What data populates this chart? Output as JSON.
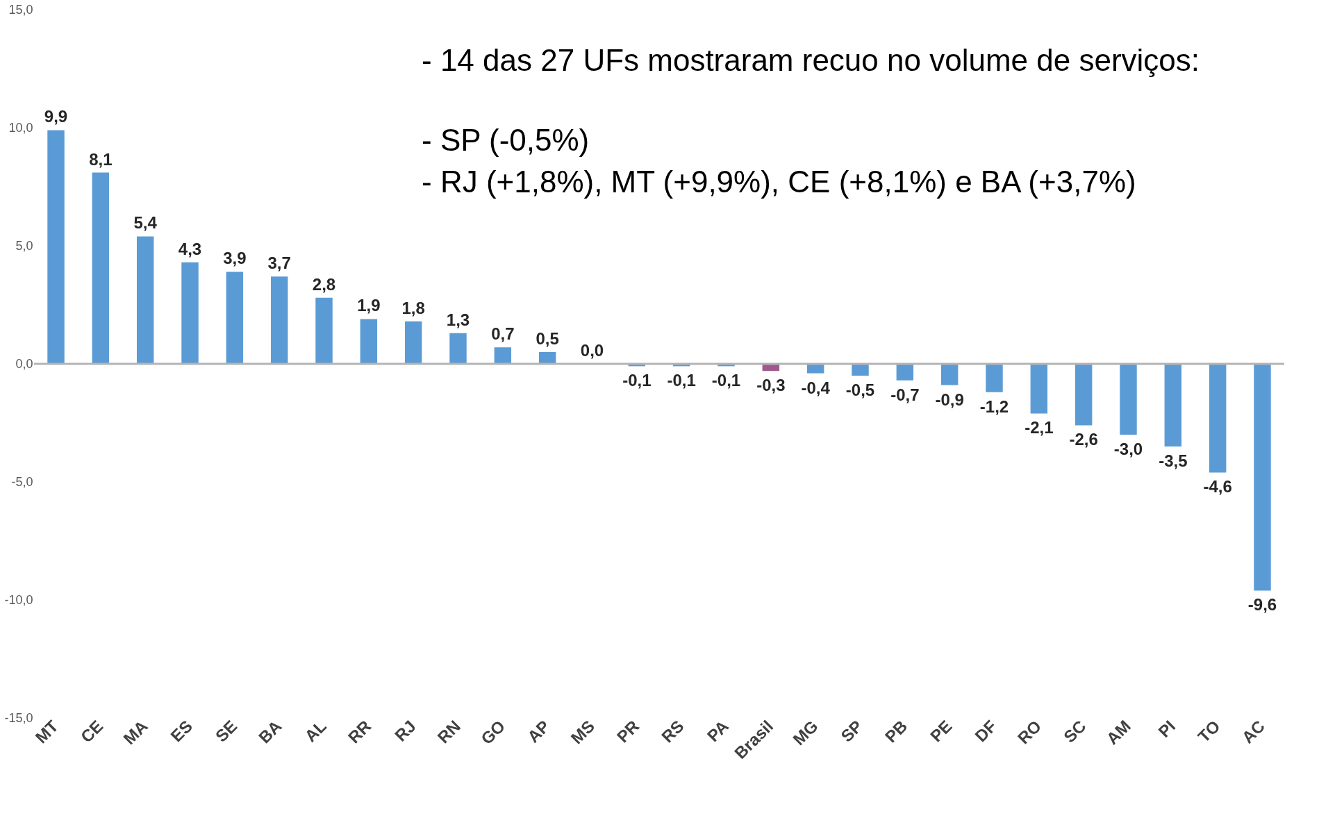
{
  "chart_data": {
    "type": "bar",
    "categories": [
      "MT",
      "CE",
      "MA",
      "ES",
      "SE",
      "BA",
      "AL",
      "RR",
      "RJ",
      "RN",
      "GO",
      "AP",
      "MS",
      "PR",
      "RS",
      "PA",
      "Brasil",
      "MG",
      "SP",
      "PB",
      "PE",
      "DF",
      "RO",
      "SC",
      "AM",
      "PI",
      "TO",
      "AC"
    ],
    "values": [
      9.9,
      8.1,
      5.4,
      4.3,
      3.9,
      3.7,
      2.8,
      1.9,
      1.8,
      1.3,
      0.7,
      0.5,
      0.0,
      -0.1,
      -0.1,
      -0.1,
      -0.3,
      -0.4,
      -0.5,
      -0.7,
      -0.9,
      -1.2,
      -2.1,
      -2.6,
      -3.0,
      -3.5,
      -4.6,
      -9.6
    ],
    "value_labels": [
      "9,9",
      "8,1",
      "5,4",
      "4,3",
      "3,9",
      "3,7",
      "2,8",
      "1,9",
      "1,8",
      "1,3",
      "0,7",
      "0,5",
      "0,0",
      "-0,1",
      "-0,1",
      "-0,1",
      "-0,3",
      "-0,4",
      "-0,5",
      "-0,7",
      "-0,9",
      "-1,2",
      "-2,1",
      "-2,6",
      "-3,0",
      "-3,5",
      "-4,6",
      "-9,6"
    ],
    "colors": [
      "#5b9bd5",
      "#5b9bd5",
      "#5b9bd5",
      "#5b9bd5",
      "#5b9bd5",
      "#5b9bd5",
      "#5b9bd5",
      "#5b9bd5",
      "#5b9bd5",
      "#5b9bd5",
      "#5b9bd5",
      "#5b9bd5",
      "#5b9bd5",
      "#5b9bd5",
      "#5b9bd5",
      "#5b9bd5",
      "#9e5a8a",
      "#5b9bd5",
      "#5b9bd5",
      "#5b9bd5",
      "#5b9bd5",
      "#5b9bd5",
      "#5b9bd5",
      "#5b9bd5",
      "#5b9bd5",
      "#5b9bd5",
      "#5b9bd5",
      "#5b9bd5"
    ],
    "ylim": [
      -15,
      15
    ],
    "yticks": [
      {
        "value": -15,
        "label": "-15,0"
      },
      {
        "value": -10,
        "label": "-10,0"
      },
      {
        "value": -5,
        "label": "-5,0"
      },
      {
        "value": 0,
        "label": "0,0"
      },
      {
        "value": 5,
        "label": "5,0"
      },
      {
        "value": 10,
        "label": "10,0"
      },
      {
        "value": 15,
        "label": "15,0"
      }
    ],
    "annotations": [
      "-   14 das 27 UFs mostraram recuo no volume de serviços:",
      "-   SP (-0,5%)",
      "-   RJ (+1,8%), MT (+9,9%), CE (+8,1%) e BA (+3,7%)"
    ],
    "ref_lines": [
      {
        "axis": "y",
        "value": 0,
        "color": "#b4b4b4"
      }
    ],
    "grid": false
  }
}
